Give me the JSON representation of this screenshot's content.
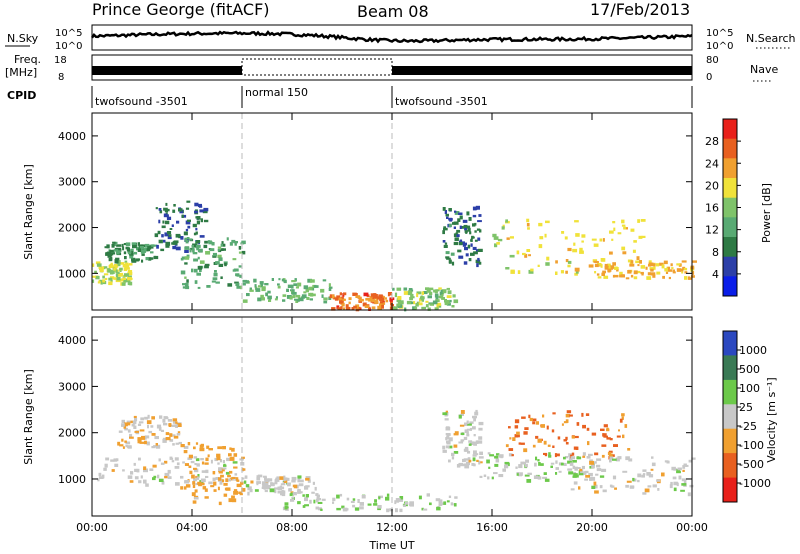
{
  "header": {
    "station": "Prince George (fitACF)",
    "beam": "Beam 08",
    "date": "17/Feb/2013"
  },
  "strips": {
    "nsky_label": "N.Sky",
    "nsky_ticks": [
      "10^5",
      "10^0"
    ],
    "nsearch_label": "N.Search",
    "nsearch_ticks": [
      "10^5",
      "10^0"
    ],
    "freq_label": "Freq.",
    "freq_unit": "[MHz]",
    "freq_ticks": [
      "18",
      "8"
    ],
    "nave_label": "Nave",
    "nave_ticks": [
      "80",
      "0"
    ],
    "cpid_label": "CPID",
    "cpid_segments": [
      "twofsound -3501",
      "normal 150",
      "twofsound -3501"
    ]
  },
  "chart_data": [
    {
      "type": "heatmap",
      "name": "power",
      "title": "",
      "xlabel": "",
      "ylabel": "Slant Range [km]",
      "xlim_hours": [
        0,
        24
      ],
      "ylim_km": [
        200,
        4500
      ],
      "yticks": [
        "4000",
        "3000",
        "2000",
        "1000"
      ],
      "colorbar_label": "Power [dB]",
      "colorbar_ticks": [
        "28",
        "24",
        "20",
        "16",
        "12",
        "8",
        "4"
      ],
      "colorbar_range": [
        0,
        32
      ],
      "colors": [
        "#0a1ee8",
        "#2c3fa8",
        "#2e7a44",
        "#59aa73",
        "#7fc36a",
        "#f0e23a",
        "#f0a030",
        "#e86020",
        "#e8201a"
      ],
      "dashed_times_hours": [
        6,
        12
      ],
      "bands": [
        {
          "t0": 0.0,
          "t1": 1.5,
          "r0": 800,
          "r1": 1300,
          "value": 18
        },
        {
          "t0": 0.5,
          "t1": 2.5,
          "r0": 1300,
          "r1": 1700,
          "value": 10
        },
        {
          "t0": 2.5,
          "t1": 4.5,
          "r0": 1500,
          "r1": 2600,
          "value": 8
        },
        {
          "t0": 3.5,
          "t1": 6.0,
          "r0": 700,
          "r1": 1800,
          "value": 12
        },
        {
          "t0": 6.0,
          "t1": 9.5,
          "r0": 400,
          "r1": 900,
          "value": 14
        },
        {
          "t0": 9.5,
          "t1": 12.0,
          "r0": 250,
          "r1": 600,
          "value": 26
        },
        {
          "t0": 12.0,
          "t1": 14.5,
          "r0": 250,
          "r1": 700,
          "value": 16
        },
        {
          "t0": 14.0,
          "t1": 15.5,
          "r0": 1200,
          "r1": 2500,
          "value": 8
        },
        {
          "t0": 16.0,
          "t1": 22.0,
          "r0": 1000,
          "r1": 2200,
          "value": 20
        },
        {
          "t0": 20.0,
          "t1": 24.0,
          "r0": 900,
          "r1": 1300,
          "value": 22
        }
      ]
    },
    {
      "type": "heatmap",
      "name": "velocity",
      "title": "",
      "xlabel": "Time UT",
      "ylabel": "Slant Range [km]",
      "xlim_hours": [
        0,
        24
      ],
      "ylim_km": [
        200,
        4500
      ],
      "xticks": [
        "00:00",
        "04:00",
        "08:00",
        "12:00",
        "16:00",
        "20:00",
        "00:00"
      ],
      "yticks": [
        "4000",
        "3000",
        "2000",
        "1000"
      ],
      "colorbar_label": "Velocity [m s⁻¹]",
      "colorbar_ticks": [
        "1000",
        "500",
        "100",
        "25",
        "-25",
        "-100",
        "-500",
        "-1000"
      ],
      "colorbar_range": [
        -1200,
        1200
      ],
      "colors": [
        "#2b48c0",
        "#3a7a55",
        "#6cc94a",
        "#c8c8c8",
        "#f0a030",
        "#e86020",
        "#e8201a"
      ],
      "dashed_times_hours": [
        6,
        12
      ],
      "bands": [
        {
          "t0": 0.0,
          "t1": 6.0,
          "r0": 900,
          "r1": 1500,
          "value": 0
        },
        {
          "t0": 1.0,
          "t1": 3.5,
          "r0": 1700,
          "r1": 2400,
          "value": -150
        },
        {
          "t0": 3.5,
          "t1": 6.0,
          "r0": 500,
          "r1": 1800,
          "value": -300
        },
        {
          "t0": 6.0,
          "t1": 9.0,
          "r0": 700,
          "r1": 1100,
          "value": 0
        },
        {
          "t0": 7.5,
          "t1": 14.5,
          "r0": 350,
          "r1": 700,
          "value": 150
        },
        {
          "t0": 14.0,
          "t1": 15.5,
          "r0": 1300,
          "r1": 2500,
          "value": 0
        },
        {
          "t0": 15.5,
          "t1": 20.0,
          "r0": 1000,
          "r1": 1600,
          "value": 150
        },
        {
          "t0": 16.5,
          "t1": 21.5,
          "r0": 1500,
          "r1": 2500,
          "value": -600
        },
        {
          "t0": 19.0,
          "t1": 24.0,
          "r0": 700,
          "r1": 1500,
          "value": 0
        }
      ]
    }
  ]
}
